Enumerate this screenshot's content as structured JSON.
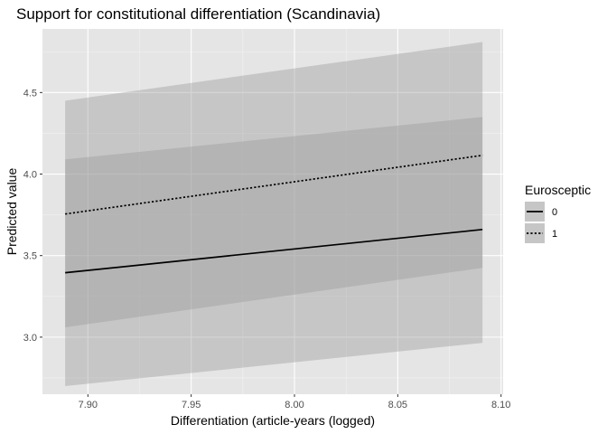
{
  "chart_data": {
    "type": "line",
    "title": "Support for constitutional differentiation (Scandinavia)",
    "xlabel": "Differentiation (article-years (logged)",
    "ylabel": "Predicted value",
    "xlim": [
      7.878,
      8.101
    ],
    "ylim": [
      2.65,
      4.89
    ],
    "x_ticks": [
      7.9,
      7.95,
      8.0,
      8.05,
      8.1
    ],
    "x_tick_labels": [
      "7.90",
      "7.95",
      "8.00",
      "8.05",
      "8.10"
    ],
    "y_ticks": [
      3.0,
      3.5,
      4.0,
      4.5
    ],
    "y_tick_labels": [
      "3.0",
      "3.5",
      "4.0",
      "4.5"
    ],
    "grid": true,
    "legend": {
      "title": "Eurosceptic",
      "placement": "right"
    },
    "series": [
      {
        "name": "0",
        "linetype": "solid",
        "x": [
          7.889,
          8.091
        ],
        "y": [
          3.395,
          3.66
        ],
        "lower": [
          3.06,
          3.425
        ],
        "upper": [
          4.09,
          4.35
        ]
      },
      {
        "name": "1",
        "linetype": "dotted",
        "x": [
          7.889,
          8.091
        ],
        "y": [
          3.755,
          4.115
        ],
        "lower": [
          2.7,
          2.965
        ],
        "upper": [
          4.45,
          4.81
        ]
      }
    ],
    "colors": {
      "panel": "#e5e5e5",
      "grid_major": "#ffffff",
      "grid_minor": "#f2f2f2",
      "ribbon": "#999999",
      "line": "#000000"
    }
  }
}
